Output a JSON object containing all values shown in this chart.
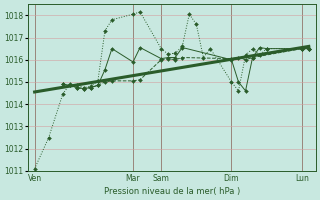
{
  "background_color": "#c8e8e0",
  "grid_color": "#d4a0a0",
  "line_color": "#2a5c2a",
  "xlabel": "Pression niveau de la mer( hPa )",
  "ylim": [
    1011.0,
    1018.5
  ],
  "yticks": [
    1011,
    1012,
    1013,
    1014,
    1015,
    1016,
    1017,
    1018
  ],
  "xtick_labels": [
    "Ven",
    "Mar",
    "Sam",
    "Dim",
    "Lun"
  ],
  "xtick_positions": [
    0,
    14,
    18,
    28,
    38
  ],
  "xlim": [
    -1,
    40
  ],
  "s1_x": [
    0,
    2,
    4,
    5,
    6,
    7,
    8,
    9,
    10,
    11,
    14,
    15,
    18,
    19,
    20,
    21,
    22,
    23,
    24,
    25,
    28,
    29,
    30,
    31,
    32,
    33,
    38,
    39
  ],
  "s1_y": [
    1011.1,
    1012.5,
    1014.45,
    1014.9,
    1014.85,
    1014.75,
    1014.8,
    1015.05,
    1017.3,
    1017.8,
    1018.05,
    1018.15,
    1016.5,
    1016.25,
    1016.3,
    1016.6,
    1018.05,
    1017.6,
    1016.1,
    1016.5,
    1015.0,
    1014.6,
    1016.2,
    1016.5,
    1016.2,
    1016.5,
    1016.5,
    1016.5
  ],
  "s2_x": [
    4,
    5,
    6,
    7,
    8,
    9,
    10,
    11,
    14,
    15,
    18,
    19,
    20,
    21,
    28,
    29,
    30,
    31,
    32,
    33,
    38,
    39
  ],
  "s2_y": [
    1014.9,
    1014.85,
    1014.75,
    1014.7,
    1014.75,
    1014.85,
    1015.55,
    1016.5,
    1015.9,
    1016.55,
    1016.05,
    1016.1,
    1016.1,
    1016.55,
    1016.0,
    1015.0,
    1014.6,
    1016.1,
    1016.55,
    1016.5,
    1016.5,
    1016.5
  ],
  "s3_x": [
    4,
    5,
    6,
    7,
    8,
    9,
    10,
    11,
    14,
    15,
    18,
    19,
    20,
    21,
    28,
    29,
    30,
    31,
    38,
    39
  ],
  "s3_y": [
    1014.9,
    1014.85,
    1014.75,
    1014.7,
    1014.75,
    1014.85,
    1015.0,
    1015.05,
    1015.05,
    1015.1,
    1016.0,
    1016.05,
    1016.0,
    1016.1,
    1016.05,
    1016.1,
    1016.0,
    1016.1,
    1016.5,
    1016.5
  ],
  "trend_x": [
    0,
    39
  ],
  "trend_y": [
    1014.55,
    1016.6
  ],
  "vline_x": [
    0,
    14,
    18,
    28,
    38
  ]
}
